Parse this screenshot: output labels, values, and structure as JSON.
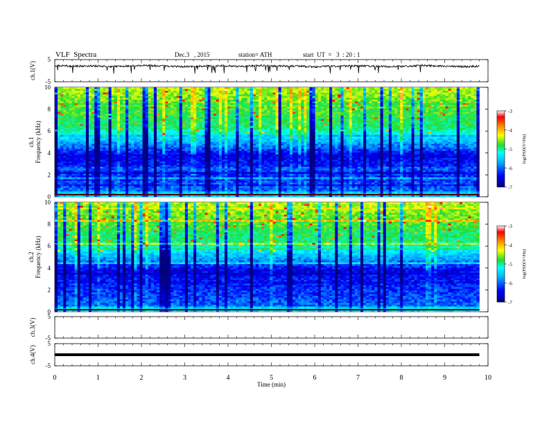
{
  "header": {
    "title": "VLF  Spectra",
    "date": "Dec.3   , 2015",
    "station": "station= ATH",
    "start": "start  UT  =   3  : 20 : 1"
  },
  "colors": {
    "waveform": "#000000",
    "colormap": [
      "#000080",
      "#0000ff",
      "#00aaff",
      "#00ffff",
      "#22dd33",
      "#ffff00",
      "#ff8800",
      "#ff0000",
      "#ffffff"
    ]
  },
  "chart_data": [
    {
      "type": "line",
      "panel": "ch1-waveform",
      "ylabel": "ch.1(V)",
      "ylim": [
        -5,
        5
      ],
      "yticks": [
        "5",
        "-5"
      ],
      "series": [
        {
          "values": [
            2.3,
            2.0,
            2.2,
            1.9,
            2.1,
            2.4,
            2.0,
            1.8,
            2.1,
            2.2,
            1.9,
            2.3,
            2.0,
            2.1,
            1.7,
            2.0,
            2.2,
            2.1,
            1.9,
            2.0,
            2.3,
            2.1,
            1.8,
            2.0
          ]
        }
      ]
    },
    {
      "type": "heatmap",
      "panel": "ch1-spectrogram",
      "ylabel_outer": "ch.1",
      "ylabel": "Frequency (kHz)",
      "ylim": [
        0,
        10
      ],
      "yticks": [
        "0",
        "2",
        "4",
        "6",
        "8",
        "10"
      ],
      "colorbar": {
        "label": "log(PSD(V²/Hz)",
        "range": [
          -7,
          -3
        ],
        "ticks": [
          "-3",
          "-4",
          "-5",
          "-6",
          "-7"
        ]
      }
    },
    {
      "type": "heatmap",
      "panel": "ch2-spectrogram",
      "ylabel_outer": "ch.2",
      "ylabel": "Frequency (kHz)",
      "ylim": [
        0,
        10
      ],
      "yticks": [
        "0",
        "2",
        "4",
        "6",
        "8",
        "10"
      ],
      "colorbar": {
        "label": "log(PSD(V²/Hz)",
        "range": [
          -7,
          -3
        ],
        "ticks": [
          "-3",
          "-4",
          "-5",
          "-6",
          "-7"
        ]
      }
    },
    {
      "type": "line",
      "panel": "ch3-waveform",
      "ylabel": "ch.3(V)",
      "ylim": [
        -5,
        5
      ],
      "yticks": [
        "5",
        "-5"
      ],
      "series": [
        {
          "values": []
        }
      ]
    },
    {
      "type": "line",
      "panel": "ch4-waveform",
      "ylabel": "ch.4(V)",
      "ylim": [
        -5,
        5
      ],
      "yticks": [
        "5",
        "-5"
      ],
      "series": [
        {
          "values": [
            0,
            0,
            0,
            0,
            0,
            0,
            0,
            0,
            0,
            0
          ]
        }
      ]
    }
  ],
  "xaxis": {
    "xlabel": "Time  (min)",
    "xlim": [
      0,
      10
    ],
    "xticks": [
      "0",
      "1",
      "2",
      "3",
      "4",
      "5",
      "6",
      "7",
      "8",
      "9",
      "10"
    ],
    "data_end": 9.8
  }
}
